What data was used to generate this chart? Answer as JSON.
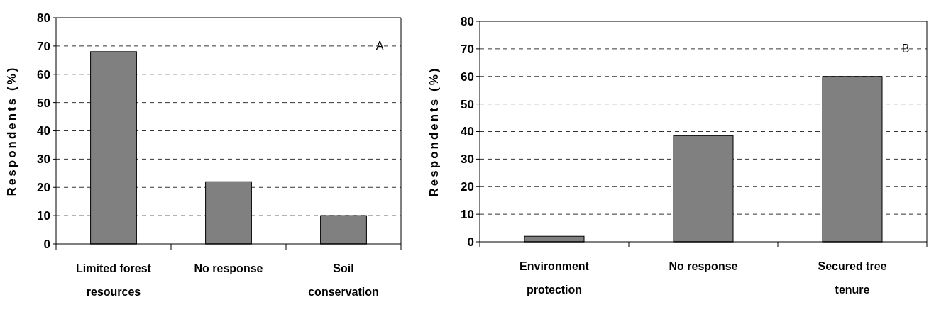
{
  "chart_data": [
    {
      "type": "bar",
      "ylabel": "Respondents (%)",
      "categories": [
        "Limited forest resources",
        "No response",
        "Soil conservation"
      ],
      "values": [
        68,
        22,
        10
      ],
      "color": "#808080",
      "ylim": [
        0,
        80
      ],
      "yticks": [
        0,
        10,
        20,
        30,
        40,
        50,
        60,
        70,
        80
      ],
      "grid": "y",
      "annotations": [
        "A"
      ]
    },
    {
      "type": "bar",
      "ylabel": "Respondents (%)",
      "categories": [
        "Environment protection",
        "No response",
        "Secured tree tenure"
      ],
      "values": [
        2,
        38.5,
        60
      ],
      "color": "#808080",
      "ylim": [
        0,
        80
      ],
      "yticks": [
        0,
        10,
        20,
        30,
        40,
        50,
        60,
        70,
        80
      ],
      "grid": "y",
      "annotations": [
        "B"
      ]
    }
  ]
}
